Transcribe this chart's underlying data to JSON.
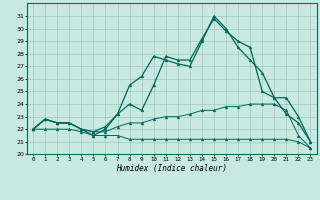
{
  "title": "",
  "xlabel": "Humidex (Indice chaleur)",
  "background_color": "#c8e8e0",
  "grid_color": "#a0c8c0",
  "line_color": "#006858",
  "x_ticks": [
    0,
    1,
    2,
    3,
    4,
    5,
    6,
    7,
    8,
    9,
    10,
    11,
    12,
    13,
    14,
    15,
    16,
    17,
    18,
    19,
    20,
    21,
    22,
    23
  ],
  "ylim": [
    20,
    32
  ],
  "y_ticks": [
    20,
    21,
    22,
    23,
    24,
    25,
    26,
    27,
    28,
    29,
    30,
    31
  ],
  "line_min": [
    22.0,
    22.0,
    22.0,
    22.0,
    21.8,
    21.5,
    21.5,
    21.5,
    21.2,
    21.2,
    21.2,
    21.2,
    21.2,
    21.2,
    21.2,
    21.2,
    21.2,
    21.2,
    21.2,
    21.2,
    21.2,
    21.2,
    21.0,
    20.5
  ],
  "line_low": [
    22.0,
    22.8,
    22.5,
    22.5,
    22.0,
    21.8,
    21.8,
    22.2,
    22.5,
    22.5,
    22.8,
    23.0,
    23.0,
    23.2,
    23.5,
    23.5,
    23.8,
    23.8,
    24.0,
    24.0,
    24.0,
    23.5,
    21.5,
    20.5
  ],
  "line_high": [
    22.0,
    22.8,
    22.5,
    22.5,
    22.0,
    21.5,
    22.0,
    23.2,
    25.5,
    26.2,
    27.8,
    27.5,
    27.2,
    27.0,
    29.0,
    31.0,
    30.0,
    28.5,
    27.5,
    26.5,
    24.5,
    23.2,
    22.5,
    21.0
  ],
  "line_mid": [
    22.0,
    22.8,
    22.5,
    22.5,
    22.0,
    21.8,
    22.2,
    23.2,
    24.0,
    23.5,
    25.5,
    27.8,
    27.5,
    27.5,
    29.2,
    30.8,
    29.8,
    29.0,
    28.5,
    25.0,
    24.5,
    24.5,
    23.0,
    21.0
  ]
}
